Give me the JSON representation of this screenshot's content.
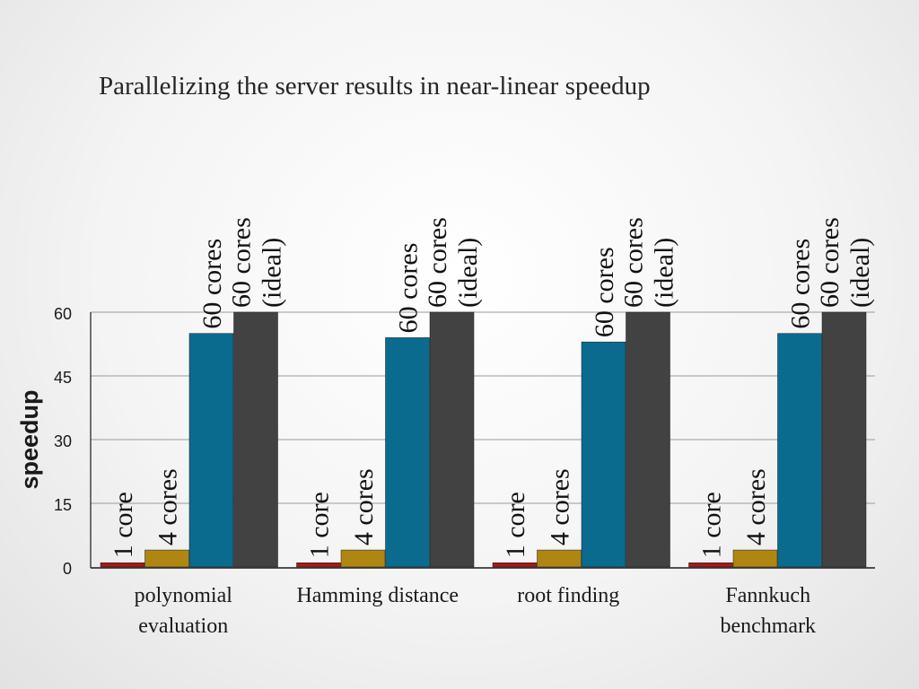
{
  "slide": {
    "title": "Parallelizing the server results in near-linear speedup"
  },
  "chart_data": {
    "type": "bar",
    "title": "",
    "xlabel": "",
    "ylabel": "speedup",
    "ylim": [
      0,
      60
    ],
    "yticks": [
      0,
      15,
      30,
      45,
      60
    ],
    "grid": true,
    "legend": "none",
    "categories": [
      [
        "polynomial",
        "evaluation"
      ],
      [
        "Hamming distance"
      ],
      [
        "root finding"
      ],
      [
        "Fannkuch",
        "benchmark"
      ]
    ],
    "series": [
      {
        "name": "1 core",
        "color": "#a51a1a",
        "values": [
          1,
          1,
          1,
          1
        ]
      },
      {
        "name": "4 cores",
        "color": "#b08612",
        "values": [
          4,
          4,
          4,
          4
        ]
      },
      {
        "name": "60 cores",
        "color": "#0a6b8e",
        "values": [
          55,
          54,
          53,
          55
        ]
      },
      {
        "name": "60 cores (ideal)",
        "color": "#424242",
        "values": [
          60,
          60,
          60,
          60
        ]
      }
    ],
    "bar_labels": [
      [
        "1 core"
      ],
      [
        "4 cores"
      ],
      [
        "60 cores"
      ],
      [
        "60 cores",
        "(ideal)"
      ]
    ]
  }
}
